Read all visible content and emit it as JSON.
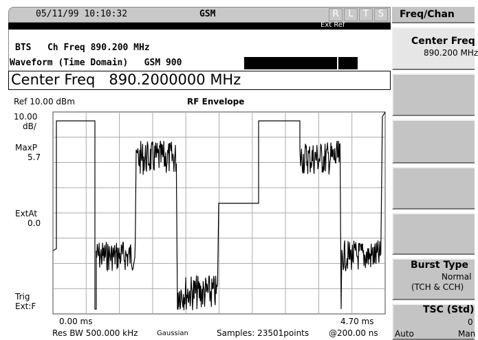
{
  "status": {
    "datetime": "05/11/99 10:10:32",
    "mode": "GSM",
    "indicators": [
      "R",
      "L",
      "T",
      "S"
    ]
  },
  "ref_status": "Ext Ref",
  "info": {
    "line1": "BTS   Ch Freq 890.200 MHz",
    "line2": "Waveform (Time Domain)   GSM 900"
  },
  "active_function": "Center Freq   890.2000000 MHz",
  "display": {
    "ref_level": "Ref 10.00 dBm",
    "title": "RF Envelope",
    "scale_value": "10.00",
    "scale_unit": "dB/",
    "maxp_label": "MaxP",
    "maxp_value": "5.7",
    "extat_label": "ExtAt",
    "extat_value": "0.0",
    "trig_label": "Trig",
    "trig_value": "Ext:F",
    "x_start": "0.00 ms",
    "x_end": "4.70 ms",
    "res_bw": "Res BW 500.000 kHz",
    "filter": "Gaussian",
    "samples": "Samples: 23501points",
    "interval": "@200.00 ns"
  },
  "softkeys": {
    "menu": "Freq/Chan",
    "center_freq": {
      "label": "Center Freq",
      "value": "890.200 MHz"
    },
    "burst_type": {
      "label": "Burst Type",
      "value": "Normal",
      "detail": "(TCH & CCH)"
    },
    "tsc": {
      "label": "TSC (Std)",
      "value": "0",
      "auto": "Auto",
      "man": "Man"
    }
  }
}
